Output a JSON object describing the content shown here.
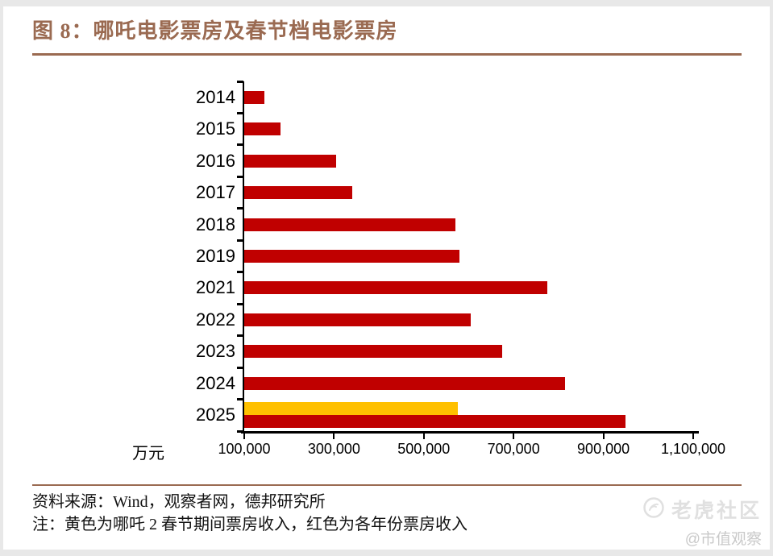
{
  "page": {
    "title": "图 8：哪吒电影票房及春节档电影票房",
    "unit_label": "万元",
    "source_line": "资料来源：Wind，观察者网，德邦研究所",
    "note_line": "注：黄色为哪吒 2 春节期间票房收入，红色为各年份票房收入",
    "watermark": {
      "community": "老虎社区",
      "handle": "@市值观察"
    },
    "colors": {
      "accent_brown": "#9a6a51",
      "bar_red": "#c00000",
      "bar_yellow": "#ffc000"
    }
  },
  "chart_data": {
    "type": "bar",
    "orientation": "horizontal",
    "title": "图 8：哪吒电影票房及春节档电影票房",
    "xlabel": "万元",
    "ylabel": "",
    "categories": [
      "2014",
      "2015",
      "2016",
      "2017",
      "2018",
      "2019",
      "2021",
      "2022",
      "2023",
      "2024",
      "2025"
    ],
    "series": [
      {
        "name": "各年份票房收入",
        "color": "#c00000",
        "values": [
          145000,
          180000,
          305000,
          340000,
          570000,
          580000,
          775000,
          605000,
          675000,
          815000,
          950000
        ]
      },
      {
        "name": "哪吒 2 春节期间票房收入",
        "color": "#ffc000",
        "values": [
          null,
          null,
          null,
          null,
          null,
          null,
          null,
          null,
          null,
          null,
          575000
        ]
      }
    ],
    "x_axis": {
      "min": 100000,
      "max": 1100000,
      "tick_interval": 200000,
      "tick_labels": [
        "100,000",
        "300,000",
        "500,000",
        "700,000",
        "900,000",
        "1,100,000"
      ]
    },
    "legend": "none",
    "grid": false
  }
}
